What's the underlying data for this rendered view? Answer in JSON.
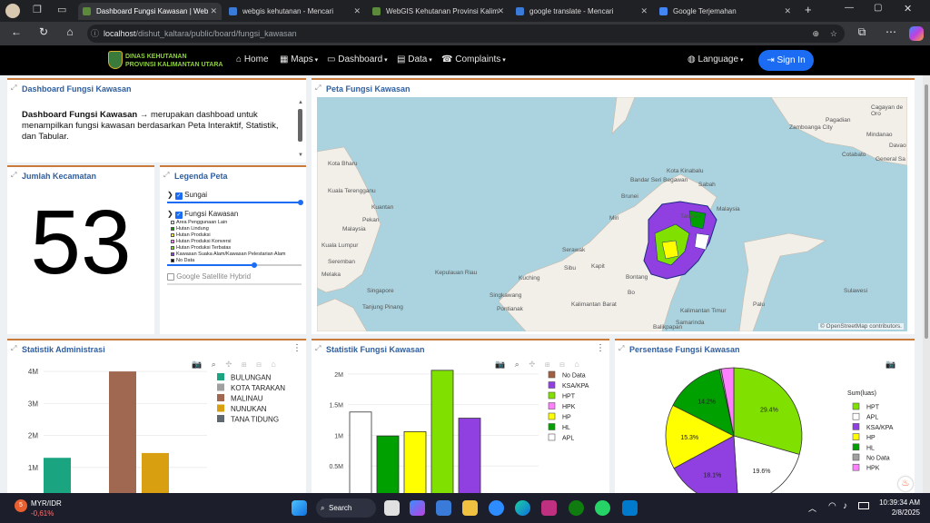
{
  "browser": {
    "tabs": [
      {
        "label": "Dashboard Fungsi Kawasan | Web",
        "active": true
      },
      {
        "label": "webgis kehutanan - Mencari",
        "active": false
      },
      {
        "label": "WebGIS Kehutanan Provinsi Kalim",
        "active": false
      },
      {
        "label": "google translate - Mencari",
        "active": false
      },
      {
        "label": "Google Terjemahan",
        "active": false
      }
    ],
    "url_host": "localhost",
    "url_path": "/dishut_kaltara/public/board/fungsi_kawasan"
  },
  "navbar": {
    "brand_line1": "DINAS KEHUTANAN",
    "brand_line2": "PROVINSI KALIMANTAN UTARA",
    "menu": [
      {
        "label": "Home"
      },
      {
        "label": "Maps"
      },
      {
        "label": "Dashboard"
      },
      {
        "label": "Data"
      },
      {
        "label": "Complaints"
      }
    ],
    "language": "Language",
    "signin": "Sign In"
  },
  "info_card": {
    "title": "Dashboard Fungsi Kawasan",
    "bold": "Dashboard Fungsi Kawasan",
    "text": " → merupakan dashboad untuk menampilkan fungsi kawasan berdasarkan Peta Interaktif, Statistik, dan Tabular."
  },
  "kecamatan_card": {
    "title": "Jumlah Kecamatan",
    "value": "53"
  },
  "legend_card": {
    "title": "Legenda Peta",
    "layer_sungai": "Sungai",
    "layer_fungsi": "Fungsi Kawasan",
    "classes": [
      {
        "label": "Area Penggunaan Lain",
        "color": "#ffffff"
      },
      {
        "label": "Hutan Lindung",
        "color": "#00a000"
      },
      {
        "label": "Hutan Produksi",
        "color": "#ffff00"
      },
      {
        "label": "Hutan Produksi Konversi",
        "color": "#ff80ff"
      },
      {
        "label": "Hutan Produksi Terbatas",
        "color": "#80e000"
      },
      {
        "label": "Kawasan Suaka Alam/Kawasan Pelestarian Alam",
        "color": "#9040e0"
      },
      {
        "label": "No Data",
        "color": "#000000"
      }
    ],
    "satellite": "Google Satellite Hybrid"
  },
  "map_card": {
    "title": "Peta Fungsi Kawasan",
    "attribution": "© OpenStreetMap contributors.",
    "places": [
      {
        "label": "Zamboanga City"
      },
      {
        "label": "Cagayan de Oro"
      },
      {
        "label": "Mindanao"
      },
      {
        "label": "Pagadian"
      },
      {
        "label": "Davao"
      },
      {
        "label": "Cotabato"
      },
      {
        "label": "General Sa"
      },
      {
        "label": "Kota Bharu"
      },
      {
        "label": "Kuala Terengganu"
      },
      {
        "label": "Brunei"
      },
      {
        "label": "Bandar Seri Begawan"
      },
      {
        "label": "Miri"
      },
      {
        "label": "Kota Kinabalu"
      },
      {
        "label": "Sabah"
      },
      {
        "label": "Malaysia"
      },
      {
        "label": "Tarakan"
      },
      {
        "label": "Kuantan"
      },
      {
        "label": "Pekan"
      },
      {
        "label": "Malaysia"
      },
      {
        "label": "Kuala Lumpur"
      },
      {
        "label": "Seremban"
      },
      {
        "label": "Melaka"
      },
      {
        "label": "Singapore"
      },
      {
        "label": "Tanjung Pinang"
      },
      {
        "label": "Kepulauan Riau"
      },
      {
        "label": "Kuching"
      },
      {
        "label": "Sibu"
      },
      {
        "label": "Kapit"
      },
      {
        "label": "Serawak"
      },
      {
        "label": "Bontang"
      },
      {
        "label": "Singkawang"
      },
      {
        "label": "Pontianak"
      },
      {
        "label": "Kalimantan Barat"
      },
      {
        "label": "Kalimantan Timur"
      },
      {
        "label": "Samarinda"
      },
      {
        "label": "Balikpapan"
      },
      {
        "label": "Sulawesi"
      },
      {
        "label": "Palu"
      },
      {
        "label": "Bo"
      }
    ]
  },
  "admin_chart_card": {
    "title": "Statistik Administrasi",
    "chart_data": {
      "type": "bar",
      "categories": [
        "BULUNGAN",
        "KOTA TARAKAN",
        "MALINAU",
        "NUNUKAN",
        "TANA TIDUNG"
      ],
      "values": [
        1300000,
        0,
        4000000,
        1450000,
        0
      ],
      "colors": [
        "#1aa47f",
        "#a0a0a0",
        "#a06850",
        "#d8a010",
        "#606870"
      ],
      "ytick_labels": [
        "1M",
        "2M",
        "3M",
        "4M"
      ],
      "ytick_values": [
        1000000,
        2000000,
        3000000,
        4000000
      ],
      "ylim": [
        0,
        4400000
      ],
      "legend_position": "right"
    }
  },
  "fungsi_chart_card": {
    "title": "Statistik Fungsi Kawasan",
    "chart_data": {
      "type": "bar",
      "categories": [
        "APL",
        "HL",
        "HP",
        "HPT",
        "KSA/KPA",
        "No Data"
      ],
      "values": [
        1380000,
        990000,
        1060000,
        2060000,
        1280000,
        30000
      ],
      "colors": [
        "#ffffff",
        "#00a000",
        "#ffff00",
        "#80e000",
        "#9040e0",
        "#a06040"
      ],
      "ytick_labels": [
        "0.5M",
        "1M",
        "1.5M",
        "2M"
      ],
      "ytick_values": [
        500000,
        1000000,
        1500000,
        2000000
      ],
      "ylim": [
        0,
        2250000
      ],
      "legend": [
        {
          "label": "No Data",
          "color": "#a06040"
        },
        {
          "label": "KSA/KPA",
          "color": "#9040e0"
        },
        {
          "label": "HPT",
          "color": "#80e000"
        },
        {
          "label": "HPK",
          "color": "#ff80ff"
        },
        {
          "label": "HP",
          "color": "#ffff00"
        },
        {
          "label": "HL",
          "color": "#00a000"
        },
        {
          "label": "APL",
          "color": "#ffffff"
        }
      ],
      "legend_position": "right"
    }
  },
  "pie_card": {
    "title": "Persentase Fungsi Kawasan",
    "chart_data": {
      "type": "pie",
      "legend_title": "Sum(luas)",
      "slices": [
        {
          "label": "HPT",
          "value": 29.4,
          "color": "#80e000",
          "text": "29.4%"
        },
        {
          "label": "APL",
          "value": 19.6,
          "color": "#ffffff",
          "text": "19.6%"
        },
        {
          "label": "KSA/KPA",
          "value": 18.1,
          "color": "#9040e0",
          "text": "18.1%"
        },
        {
          "label": "HP",
          "value": 15.3,
          "color": "#ffff00",
          "text": "15.3%"
        },
        {
          "label": "HL",
          "value": 14.2,
          "color": "#00a000",
          "text": "14.2%"
        },
        {
          "label": "No Data",
          "value": 0.4,
          "color": "#a0a0a0",
          "text": ""
        },
        {
          "label": "HPK",
          "value": 3.0,
          "color": "#ff80ff",
          "text": ""
        }
      ],
      "legend_position": "right"
    }
  },
  "taskbar": {
    "ticker_name": "MYR/IDR",
    "ticker_change": "-0,61%",
    "search": "Search",
    "time": "10:39:34 AM",
    "date": "2/8/2025"
  }
}
